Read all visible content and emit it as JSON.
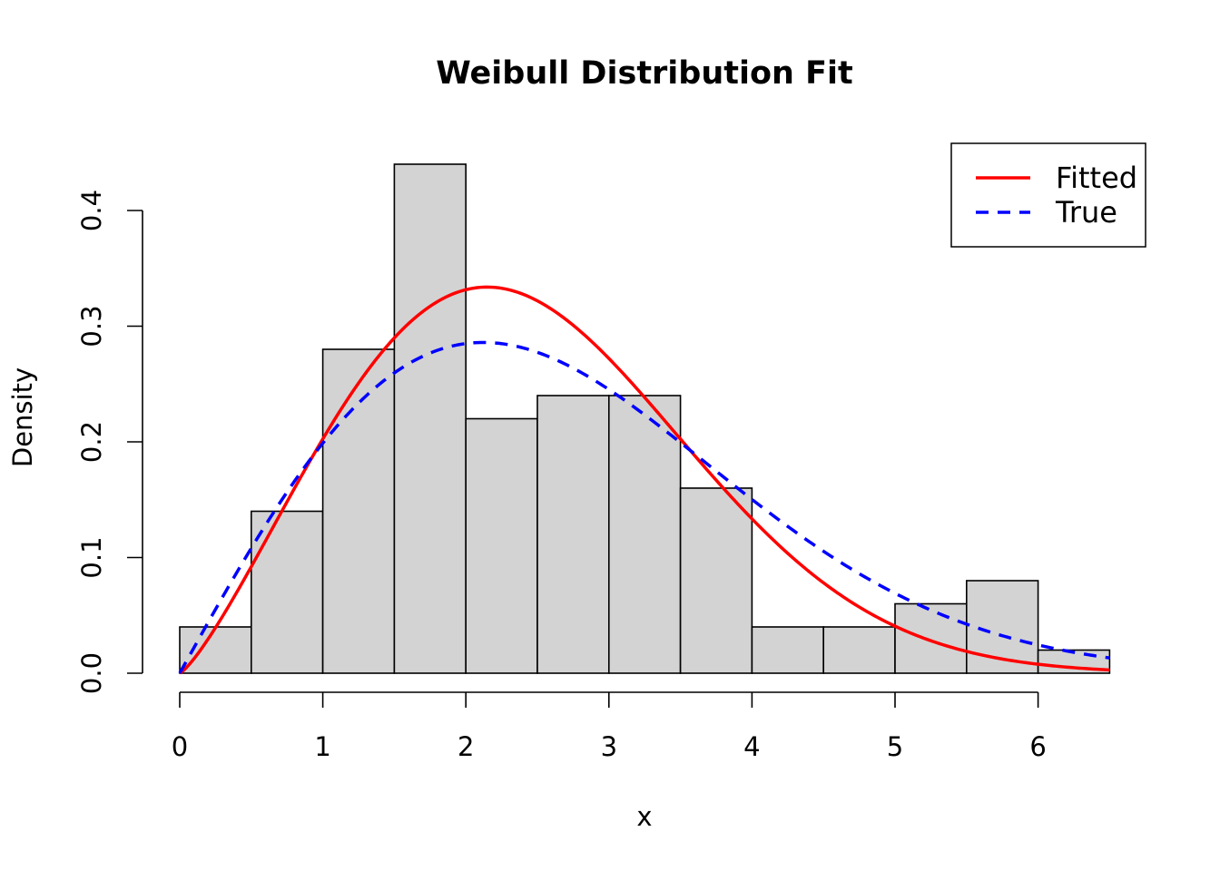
{
  "chart_data": {
    "type": "histogram",
    "title": "Weibull Distribution Fit",
    "xlabel": "x",
    "ylabel": "Density",
    "xlim": [
      0,
      6.5
    ],
    "ylim": [
      0,
      0.44
    ],
    "x_ticks": [
      0,
      1,
      2,
      3,
      4,
      5,
      6
    ],
    "y_ticks": [
      0.0,
      0.1,
      0.2,
      0.3,
      0.4
    ],
    "y_tick_labels": [
      "0.0",
      "0.1",
      "0.2",
      "0.3",
      "0.4"
    ],
    "bin_width": 0.5,
    "bins": [
      {
        "x0": 0.0,
        "x1": 0.5,
        "density": 0.04
      },
      {
        "x0": 0.5,
        "x1": 1.0,
        "density": 0.14
      },
      {
        "x0": 1.0,
        "x1": 1.5,
        "density": 0.28
      },
      {
        "x0": 1.5,
        "x1": 2.0,
        "density": 0.44
      },
      {
        "x0": 2.0,
        "x1": 2.5,
        "density": 0.22
      },
      {
        "x0": 2.5,
        "x1": 3.0,
        "density": 0.24
      },
      {
        "x0": 3.0,
        "x1": 3.5,
        "density": 0.24
      },
      {
        "x0": 3.5,
        "x1": 4.0,
        "density": 0.16
      },
      {
        "x0": 4.0,
        "x1": 4.5,
        "density": 0.04
      },
      {
        "x0": 4.5,
        "x1": 5.0,
        "density": 0.04
      },
      {
        "x0": 5.0,
        "x1": 5.5,
        "density": 0.06
      },
      {
        "x0": 5.5,
        "x1": 6.0,
        "density": 0.08
      },
      {
        "x0": 6.0,
        "x1": 6.5,
        "density": 0.02
      }
    ],
    "series": [
      {
        "name": "Fitted",
        "kind": "weibull-density",
        "shape": 2.25,
        "scale": 2.79,
        "color": "#ff0000",
        "line_style": "solid"
      },
      {
        "name": "True",
        "kind": "weibull-density",
        "shape": 2.0,
        "scale": 3.0,
        "color": "#0000ff",
        "line_style": "dashed"
      }
    ],
    "legend": {
      "position": "top-right",
      "entries": [
        "Fitted",
        "True"
      ]
    },
    "bar_fill": "#d3d3d3",
    "bar_stroke": "#000000",
    "grid": false
  }
}
